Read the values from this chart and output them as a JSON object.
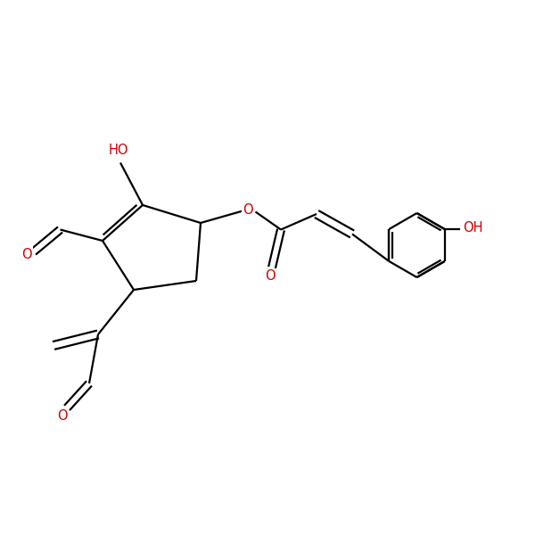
{
  "background": "#ffffff",
  "bond_color": "#000000",
  "heteroatom_color": "#cc0000",
  "line_width": 1.6,
  "font_size": 10.5,
  "figsize": [
    6.0,
    6.0
  ],
  "dpi": 100,
  "xlim": [
    0,
    12
  ],
  "ylim": [
    0,
    12
  ]
}
